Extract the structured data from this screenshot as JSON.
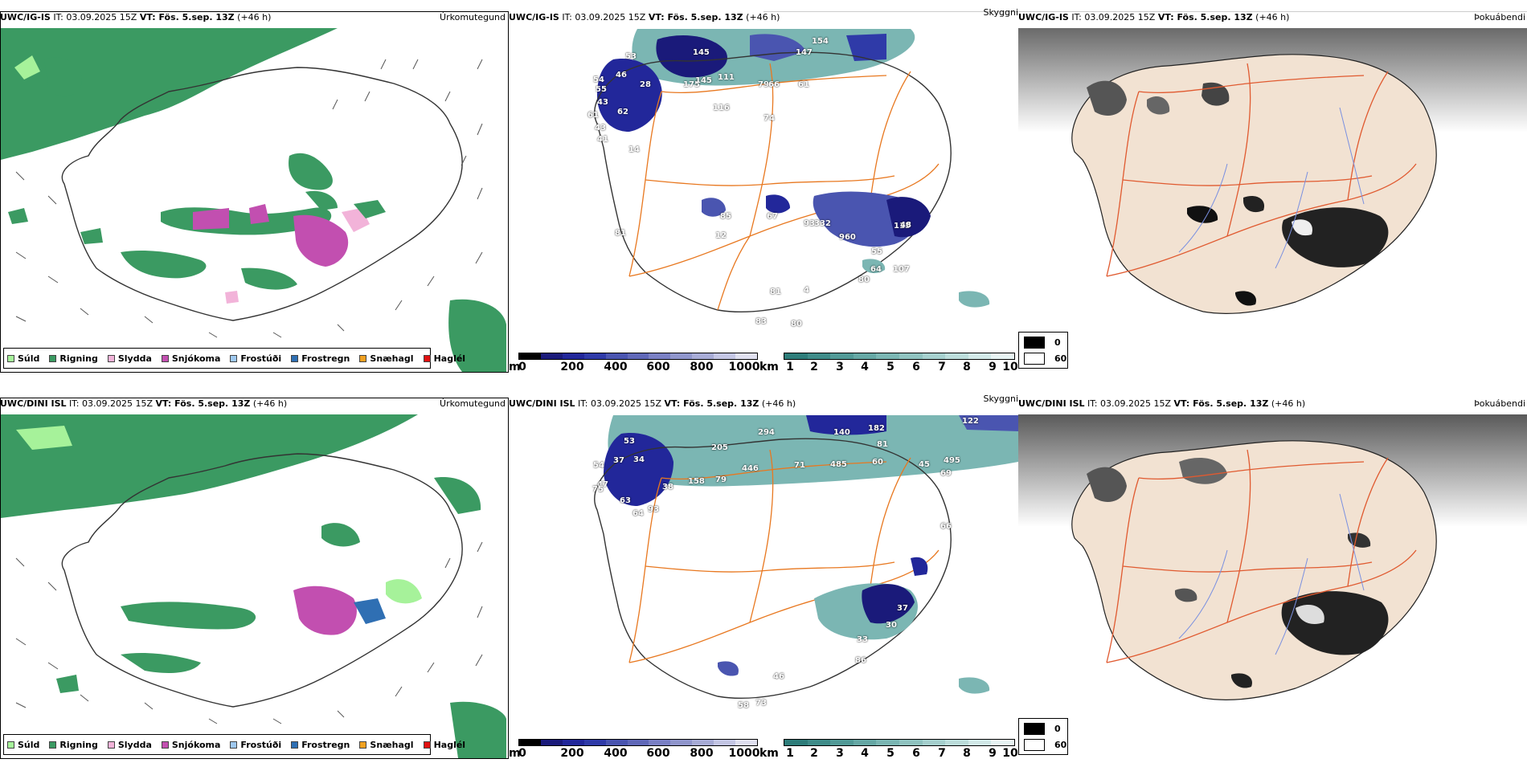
{
  "rows": [
    {
      "model": "UWC/IG-IS",
      "it_label": "IT: 03.09.2025 15Z",
      "vt_label": "VT: Fös. 5.sep. 13Z",
      "lead": "(+46 h)",
      "panel1_title": "Úrkomutegund",
      "panel2_title": "Skyggni",
      "panel3_title": "Þokuábendi",
      "cloud_labels": [
        "53",
        "145",
        "154",
        "147",
        "46",
        "28",
        "54",
        "55",
        "43",
        "61",
        "175",
        "145",
        "111",
        "79",
        "66",
        "61",
        "62",
        "116",
        "74",
        "43",
        "41",
        "14",
        "85",
        "67",
        "81",
        "93",
        "12",
        "332",
        "960",
        "115",
        "55",
        "48",
        "64",
        "107",
        "80",
        "81",
        "4",
        "83",
        "80"
      ]
    },
    {
      "model": "UWC/DINI ISL",
      "it_label": "IT: 03.09.2025 15Z",
      "vt_label": "VT: Fös. 5.sep. 13Z",
      "lead": "(+46 h)",
      "panel1_title": "Úrkomutegund",
      "panel2_title": "Skyggni",
      "panel3_title": "Þokuábendi",
      "cloud_labels": [
        "294",
        "140",
        "182",
        "122",
        "53",
        "205",
        "81",
        "37",
        "34",
        "446",
        "71",
        "485",
        "60",
        "45",
        "54",
        "158",
        "79",
        "495",
        "69",
        "47",
        "38",
        "75",
        "63",
        "93",
        "64",
        "37",
        "30",
        "33",
        "86",
        "46",
        "73",
        "58",
        "66"
      ]
    }
  ],
  "precip_legend": [
    {
      "label": "Súld",
      "color": "#a6f29a"
    },
    {
      "label": "Rigning",
      "color": "#3b9a62"
    },
    {
      "label": "Slydda",
      "color": "#f2b3d9"
    },
    {
      "label": "Snjókoma",
      "color": "#c24fb0"
    },
    {
      "label": "Frostúði",
      "color": "#9fc9f0"
    },
    {
      "label": "Frostregn",
      "color": "#2f6fb3"
    },
    {
      "label": "Snæhagl",
      "color": "#f0a020"
    },
    {
      "label": "Haglél",
      "color": "#e01010"
    }
  ],
  "cloudbase_bar": {
    "unit": "m",
    "ticks": [
      "0",
      "200",
      "400",
      "600",
      "800",
      "1000"
    ],
    "colors": [
      "#000000",
      "#1a1a7a",
      "#22279a",
      "#2f3aa8",
      "#4a55b0",
      "#6068b8",
      "#7a80c4",
      "#9096cc",
      "#a8acd6",
      "#c4c6e4",
      "#e0e0f0"
    ]
  },
  "visibility_bar": {
    "unit": "km",
    "ticks": [
      "1",
      "2",
      "3",
      "4",
      "5",
      "6",
      "7",
      "8",
      "9",
      "10"
    ],
    "colors": [
      "#2e7d7a",
      "#3f8c89",
      "#529a97",
      "#66a8a5",
      "#7bb6b3",
      "#90c3c0",
      "#a6d0ce",
      "#bcdddb",
      "#d2e9e8",
      "#e8f4f4"
    ]
  },
  "fog_legend": [
    {
      "label": "0",
      "color": "#000000"
    },
    {
      "label": "60",
      "color": "#ffffff"
    }
  ],
  "colors": {
    "land_fog": "#f2e2d2",
    "roads": "#e87820",
    "roads_fog": "#e05a30",
    "rivers": "#7a90e0",
    "coast": "#000000"
  }
}
